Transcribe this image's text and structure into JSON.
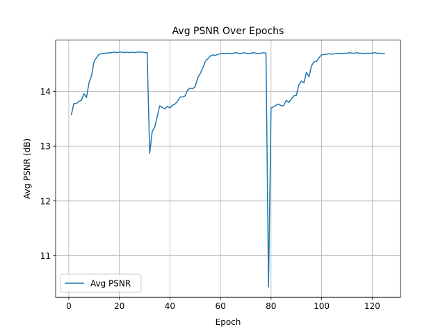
{
  "chart_data": {
    "type": "line",
    "title": "Avg PSNR Over Epochs",
    "xlabel": "Epoch",
    "ylabel": "Avg PSNR (dB)",
    "xlim": [
      -5.2,
      131.2
    ],
    "ylim": [
      10.24,
      14.94
    ],
    "xticks": [
      0,
      20,
      40,
      60,
      80,
      100,
      120
    ],
    "yticks": [
      11,
      12,
      13,
      14
    ],
    "grid": true,
    "legend_position": "lower-left",
    "series": [
      {
        "name": "Avg PSNR",
        "color": "#1f77b4",
        "x": [
          1,
          2,
          3,
          4,
          5,
          6,
          7,
          8,
          9,
          10,
          11,
          12,
          13,
          14,
          15,
          16,
          17,
          18,
          19,
          20,
          21,
          22,
          23,
          24,
          25,
          26,
          27,
          28,
          29,
          30,
          31,
          32,
          33,
          34,
          35,
          36,
          37,
          38,
          39,
          40,
          41,
          42,
          43,
          44,
          45,
          46,
          47,
          48,
          49,
          50,
          51,
          52,
          53,
          54,
          55,
          56,
          57,
          58,
          59,
          60,
          61,
          62,
          63,
          64,
          65,
          66,
          67,
          68,
          69,
          70,
          71,
          72,
          73,
          74,
          75,
          76,
          77,
          78,
          79,
          80,
          81,
          82,
          83,
          84,
          85,
          86,
          87,
          88,
          89,
          90,
          91,
          92,
          93,
          94,
          95,
          96,
          97,
          98,
          99,
          100,
          101,
          102,
          103,
          104,
          105,
          106,
          107,
          108,
          109,
          110,
          111,
          112,
          113,
          114,
          115,
          116,
          117,
          118,
          119,
          120,
          121,
          122,
          123,
          124,
          125
        ],
        "values": [
          13.57,
          13.78,
          13.78,
          13.82,
          13.84,
          13.96,
          13.89,
          14.16,
          14.29,
          14.55,
          14.62,
          14.68,
          14.69,
          14.7,
          14.7,
          14.71,
          14.71,
          14.72,
          14.71,
          14.72,
          14.72,
          14.71,
          14.72,
          14.71,
          14.72,
          14.71,
          14.72,
          14.72,
          14.72,
          14.71,
          14.71,
          12.87,
          13.27,
          13.35,
          13.55,
          13.74,
          13.71,
          13.68,
          13.73,
          13.7,
          13.75,
          13.77,
          13.82,
          13.9,
          13.9,
          13.92,
          14.03,
          14.06,
          14.05,
          14.09,
          14.25,
          14.33,
          14.43,
          14.55,
          14.6,
          14.65,
          14.67,
          14.66,
          14.68,
          14.69,
          14.7,
          14.69,
          14.7,
          14.69,
          14.7,
          14.71,
          14.7,
          14.69,
          14.71,
          14.7,
          14.69,
          14.7,
          14.71,
          14.7,
          14.69,
          14.7,
          14.71,
          14.7,
          10.43,
          13.7,
          13.72,
          13.75,
          13.77,
          13.74,
          13.74,
          13.84,
          13.8,
          13.86,
          13.92,
          13.93,
          14.12,
          14.19,
          14.16,
          14.35,
          14.27,
          14.47,
          14.54,
          14.55,
          14.62,
          14.67,
          14.68,
          14.68,
          14.69,
          14.68,
          14.69,
          14.69,
          14.7,
          14.69,
          14.7,
          14.7,
          14.71,
          14.7,
          14.7,
          14.71,
          14.7,
          14.7,
          14.69,
          14.7,
          14.7,
          14.7,
          14.71,
          14.7,
          14.7,
          14.69,
          14.7
        ]
      }
    ]
  }
}
